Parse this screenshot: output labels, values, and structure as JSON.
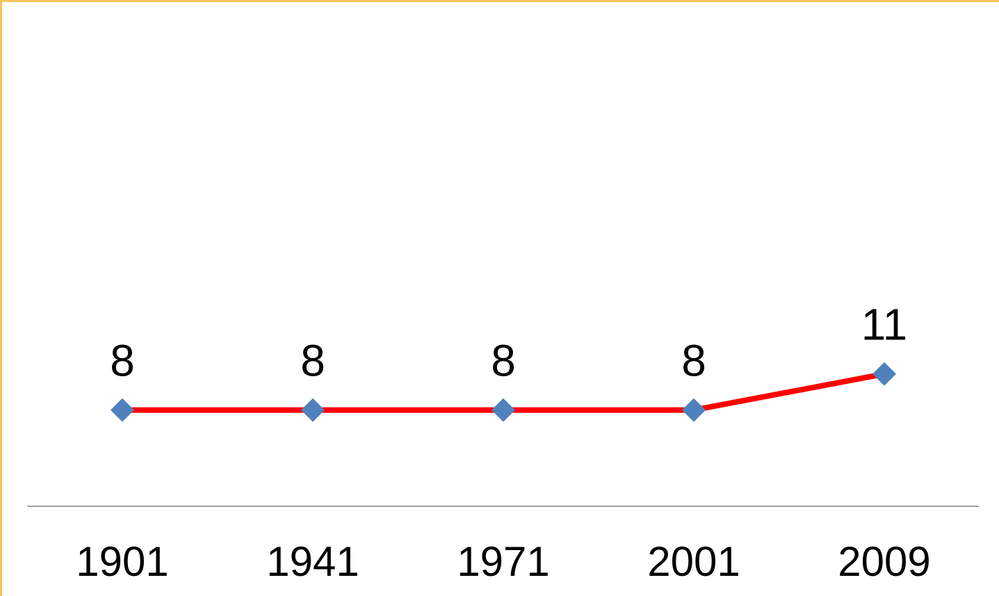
{
  "chart_data": {
    "type": "line",
    "categories": [
      "1901",
      "1941",
      "1971",
      "2001",
      "2009"
    ],
    "series": [
      {
        "color": "#ff0000",
        "marker_color": "#4f81bd",
        "values": [
          8,
          8,
          8,
          8,
          11
        ]
      }
    ],
    "ylim": [
      0,
      40
    ]
  }
}
